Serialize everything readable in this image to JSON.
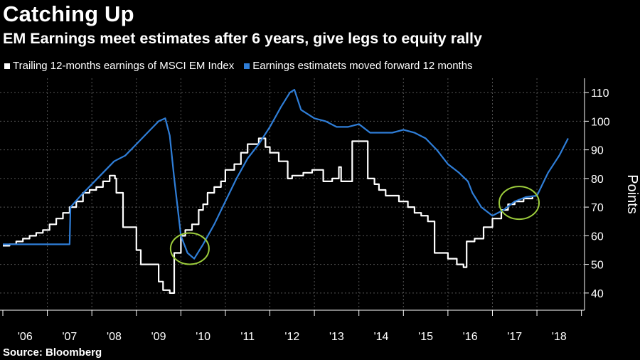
{
  "title": "Catching Up",
  "subtitle": "EM Earnings meet estimates after 6 years, give legs to equity rally",
  "source": "Source: Bloomberg",
  "colors": {
    "background": "#000000",
    "trailing": "#ffffff",
    "estimates": "#2f7ed8",
    "highlight": "#9ccc3c",
    "grid": "#555555"
  },
  "chart_data": {
    "type": "line",
    "ylabel": "Points",
    "ylim": [
      34,
      115
    ],
    "yticks": [
      40,
      50,
      60,
      70,
      80,
      90,
      100,
      110
    ],
    "xlim": [
      2006.0,
      2018.75
    ],
    "xticks": [
      {
        "label": "'06",
        "pos": 2006.5
      },
      {
        "label": "'07",
        "pos": 2007.5
      },
      {
        "label": "'08",
        "pos": 2008.5
      },
      {
        "label": "'09",
        "pos": 2009.5
      },
      {
        "label": "'10",
        "pos": 2010.5
      },
      {
        "label": "'11",
        "pos": 2011.5
      },
      {
        "label": "'12",
        "pos": 2012.5
      },
      {
        "label": "'13",
        "pos": 2013.5
      },
      {
        "label": "'14",
        "pos": 2014.5
      },
      {
        "label": "'15",
        "pos": 2015.5
      },
      {
        "label": "'16",
        "pos": 2016.5
      },
      {
        "label": "'17",
        "pos": 2017.5
      },
      {
        "label": "'18",
        "pos": 2018.5
      }
    ],
    "grid": true,
    "legend": "top-left",
    "series": [
      {
        "name": "Trailing 12-months earnings of MSCI EM Index",
        "color": "#ffffff",
        "x": [
          2006.0,
          2006.15,
          2006.3,
          2006.45,
          2006.6,
          2006.75,
          2006.9,
          2007.05,
          2007.2,
          2007.35,
          2007.5,
          2007.65,
          2007.8,
          2007.95,
          2008.1,
          2008.25,
          2008.4,
          2008.52,
          2008.55,
          2008.7,
          2009.0,
          2009.1,
          2009.5,
          2009.6,
          2009.75,
          2009.85,
          2010.0,
          2010.1,
          2010.25,
          2010.4,
          2010.5,
          2010.6,
          2010.75,
          2010.9,
          2011.0,
          2011.2,
          2011.35,
          2011.5,
          2011.75,
          2011.9,
          2012.0,
          2012.2,
          2012.4,
          2012.5,
          2012.75,
          2012.95,
          2013.2,
          2013.4,
          2013.55,
          2013.6,
          2013.85,
          2014.0,
          2014.2,
          2014.35,
          2014.45,
          2014.6,
          2014.9,
          2015.1,
          2015.25,
          2015.4,
          2015.55,
          2015.7,
          2016.0,
          2016.2,
          2016.35,
          2016.42,
          2016.6,
          2016.8,
          2017.0,
          2017.2,
          2017.35,
          2017.5,
          2017.7,
          2017.9
        ],
        "y": [
          56.5,
          57,
          58,
          59,
          60,
          61,
          62,
          64,
          66,
          68,
          70,
          72,
          75,
          76,
          77,
          79,
          81,
          80,
          75,
          63,
          55,
          50,
          44,
          41,
          40,
          54,
          60,
          62,
          64,
          69,
          71,
          75,
          77,
          79,
          83,
          85,
          89,
          92,
          94,
          91,
          89,
          86,
          80,
          81,
          82,
          83,
          79,
          80,
          84,
          79,
          93,
          93,
          80,
          78,
          76,
          74,
          72,
          70,
          68,
          67,
          65,
          54,
          52,
          50,
          49,
          58,
          59,
          63,
          66,
          69,
          71,
          72,
          73,
          73.5
        ]
      },
      {
        "name": "Earnings estimatets moved forward 12 months",
        "color": "#2f7ed8",
        "x": [
          2006.0,
          2006.5,
          2007.0,
          2007.5,
          2007.52,
          2007.75,
          2008.0,
          2008.25,
          2008.5,
          2008.75,
          2009.0,
          2009.25,
          2009.5,
          2009.65,
          2009.75,
          2009.85,
          2010.0,
          2010.15,
          2010.3,
          2010.5,
          2010.75,
          2011.0,
          2011.25,
          2011.5,
          2011.75,
          2012.0,
          2012.25,
          2012.45,
          2012.55,
          2012.7,
          2013.0,
          2013.25,
          2013.5,
          2013.75,
          2014.0,
          2014.25,
          2014.5,
          2014.75,
          2015.0,
          2015.25,
          2015.5,
          2015.75,
          2016.0,
          2016.25,
          2016.45,
          2016.55,
          2016.75,
          2017.0,
          2017.25,
          2017.5,
          2017.75,
          2018.0,
          2018.25,
          2018.5,
          2018.7
        ],
        "y": [
          57,
          57,
          57,
          57,
          70,
          74,
          78,
          82,
          86,
          88,
          92,
          96,
          100,
          101,
          95,
          80,
          60,
          54,
          52,
          57,
          64,
          72,
          80,
          87,
          92,
          98,
          105,
          110,
          111,
          104,
          101,
          100,
          98,
          98,
          99,
          96,
          96,
          96,
          97,
          96,
          94,
          90,
          85,
          82,
          79,
          75,
          70,
          67,
          69,
          72,
          73.5,
          74,
          82,
          88,
          94
        ]
      }
    ]
  }
}
